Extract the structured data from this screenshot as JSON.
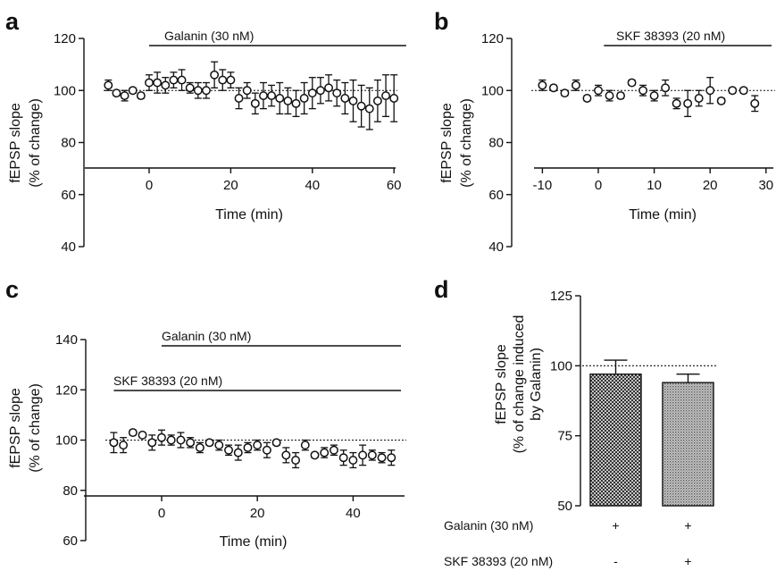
{
  "chart_data": [
    {
      "panel": "a",
      "type": "scatter",
      "title": "",
      "xlabel": "Time (min)",
      "ylabel_lines": [
        "fEPSP slope",
        "(% of change)"
      ],
      "xlim": [
        -12,
        64
      ],
      "ylim": [
        40,
        120
      ],
      "xticks": [
        0,
        20,
        40,
        60
      ],
      "yticks": [
        40,
        60,
        80,
        100,
        120
      ],
      "xtick_labels": [
        "0",
        "20",
        "40",
        "60"
      ],
      "ytick_labels": [
        "40",
        "60",
        "80",
        "100",
        "120"
      ],
      "reference_line": 100,
      "bars": [
        {
          "label": "Galanin (30 nM)",
          "x_start": 0,
          "x_end": 63
        }
      ],
      "series": [
        {
          "marker": "open-circle",
          "x": [
            -10,
            -8,
            -6,
            -4,
            -2,
            0,
            2,
            4,
            6,
            8,
            10,
            12,
            14,
            16,
            18,
            20,
            22,
            24,
            26,
            28,
            30,
            32,
            34,
            36,
            38,
            40,
            42,
            44,
            46,
            48,
            50,
            52,
            54,
            56,
            58,
            60
          ],
          "y": [
            102,
            99,
            98,
            100,
            98,
            103,
            103,
            102,
            104,
            104,
            101,
            100,
            100,
            106,
            104,
            104,
            97,
            100,
            95,
            98,
            98,
            97,
            96,
            95,
            97,
            99,
            100,
            101,
            99,
            97,
            96,
            94,
            93,
            96,
            98,
            97
          ],
          "err": [
            2,
            1,
            2,
            1,
            1,
            3,
            4,
            3,
            3,
            4,
            2,
            3,
            3,
            5,
            4,
            3,
            4,
            3,
            4,
            5,
            4,
            6,
            5,
            5,
            6,
            6,
            5,
            5,
            5,
            6,
            8,
            8,
            8,
            8,
            8,
            9
          ]
        }
      ]
    },
    {
      "panel": "b",
      "type": "scatter",
      "title": "",
      "xlabel": "Time (min)",
      "ylabel_lines": [
        "fEPSP slope",
        "(% of change)"
      ],
      "xlim": [
        -12,
        31
      ],
      "ylim": [
        40,
        120
      ],
      "xticks": [
        -10,
        0,
        10,
        20,
        30
      ],
      "yticks": [
        40,
        60,
        80,
        100,
        120
      ],
      "xtick_labels": [
        "-10",
        "0",
        "10",
        "20",
        "30"
      ],
      "ytick_labels": [
        "40",
        "60",
        "80",
        "100",
        "120"
      ],
      "reference_line": 100,
      "bars": [
        {
          "label": "SKF 38393 (20 nM)",
          "x_start": 1,
          "x_end": 31
        }
      ],
      "series": [
        {
          "marker": "open-circle",
          "x": [
            -10,
            -8,
            -6,
            -4,
            -2,
            0,
            2,
            4,
            6,
            8,
            10,
            12,
            14,
            16,
            18,
            20,
            22,
            24,
            26,
            28
          ],
          "y": [
            102,
            101,
            99,
            102,
            97,
            100,
            98,
            98,
            103,
            100,
            98,
            101,
            95,
            95,
            97,
            100,
            96,
            100,
            100,
            95
          ],
          "err": [
            2,
            1,
            1,
            2,
            1,
            2,
            2,
            1,
            1,
            2,
            2,
            3,
            2,
            5,
            3,
            5,
            1,
            1,
            1,
            3
          ]
        }
      ]
    },
    {
      "panel": "c",
      "type": "scatter",
      "title": "",
      "xlabel": "Time (min)",
      "ylabel_lines": [
        "fEPSP slope",
        "(% of change)"
      ],
      "xlim": [
        -12,
        50
      ],
      "ylim": [
        60,
        140
      ],
      "xticks": [
        0,
        20,
        40
      ],
      "yticks": [
        60,
        80,
        100,
        120,
        140
      ],
      "xtick_labels": [
        "0",
        "20",
        "40"
      ],
      "ytick_labels": [
        "60",
        "80",
        "100",
        "120",
        "140"
      ],
      "reference_line": 100,
      "bars": [
        {
          "label": "Galanin (30 nM)",
          "x_start": 0,
          "x_end": 50
        },
        {
          "label": "SKF 38393 (20 nM)",
          "x_start": -10,
          "x_end": 50
        }
      ],
      "series": [
        {
          "marker": "open-circle",
          "x": [
            -10,
            -8,
            -6,
            -4,
            -2,
            0,
            2,
            4,
            6,
            8,
            10,
            12,
            14,
            16,
            18,
            20,
            22,
            24,
            26,
            28,
            30,
            32,
            34,
            36,
            38,
            40,
            42,
            44,
            46,
            48
          ],
          "y": [
            99,
            98,
            103,
            102,
            99,
            101,
            100,
            100,
            99,
            97,
            99,
            98,
            96,
            95,
            97,
            98,
            96,
            99,
            94,
            92,
            98,
            94,
            95,
            96,
            93,
            92,
            94,
            94,
            93,
            93
          ],
          "err": [
            4,
            3,
            1,
            1,
            3,
            3,
            2,
            3,
            2,
            2,
            1,
            2,
            2,
            3,
            2,
            2,
            3,
            1,
            3,
            3,
            2,
            1,
            2,
            2,
            3,
            3,
            4,
            2,
            2,
            3
          ]
        }
      ]
    },
    {
      "panel": "d",
      "type": "bar",
      "title": "",
      "ylabel_lines": [
        "fEPSP slope",
        "(% of change induced",
        "by Galanin)"
      ],
      "ylim": [
        50,
        125
      ],
      "yticks": [
        50,
        75,
        100,
        125
      ],
      "ytick_labels": [
        "50",
        "75",
        "100",
        "125"
      ],
      "reference_line": 100,
      "values": [
        97,
        94
      ],
      "errors": [
        5,
        3
      ],
      "fills": [
        "crosshatch-dark",
        "stipple-light"
      ],
      "treatment_rows": [
        {
          "label": "Galanin (30 nM)",
          "marks": [
            "+",
            "+"
          ]
        },
        {
          "label": "SKF 38393 (20 nM)",
          "marks": [
            "-",
            "+"
          ]
        }
      ]
    }
  ],
  "panel_letters": [
    "a",
    "b",
    "c",
    "d"
  ],
  "colors": {
    "ink": "#111111",
    "marker_fill": "#ffffff",
    "bar2_fill": "#a9a9a9"
  }
}
